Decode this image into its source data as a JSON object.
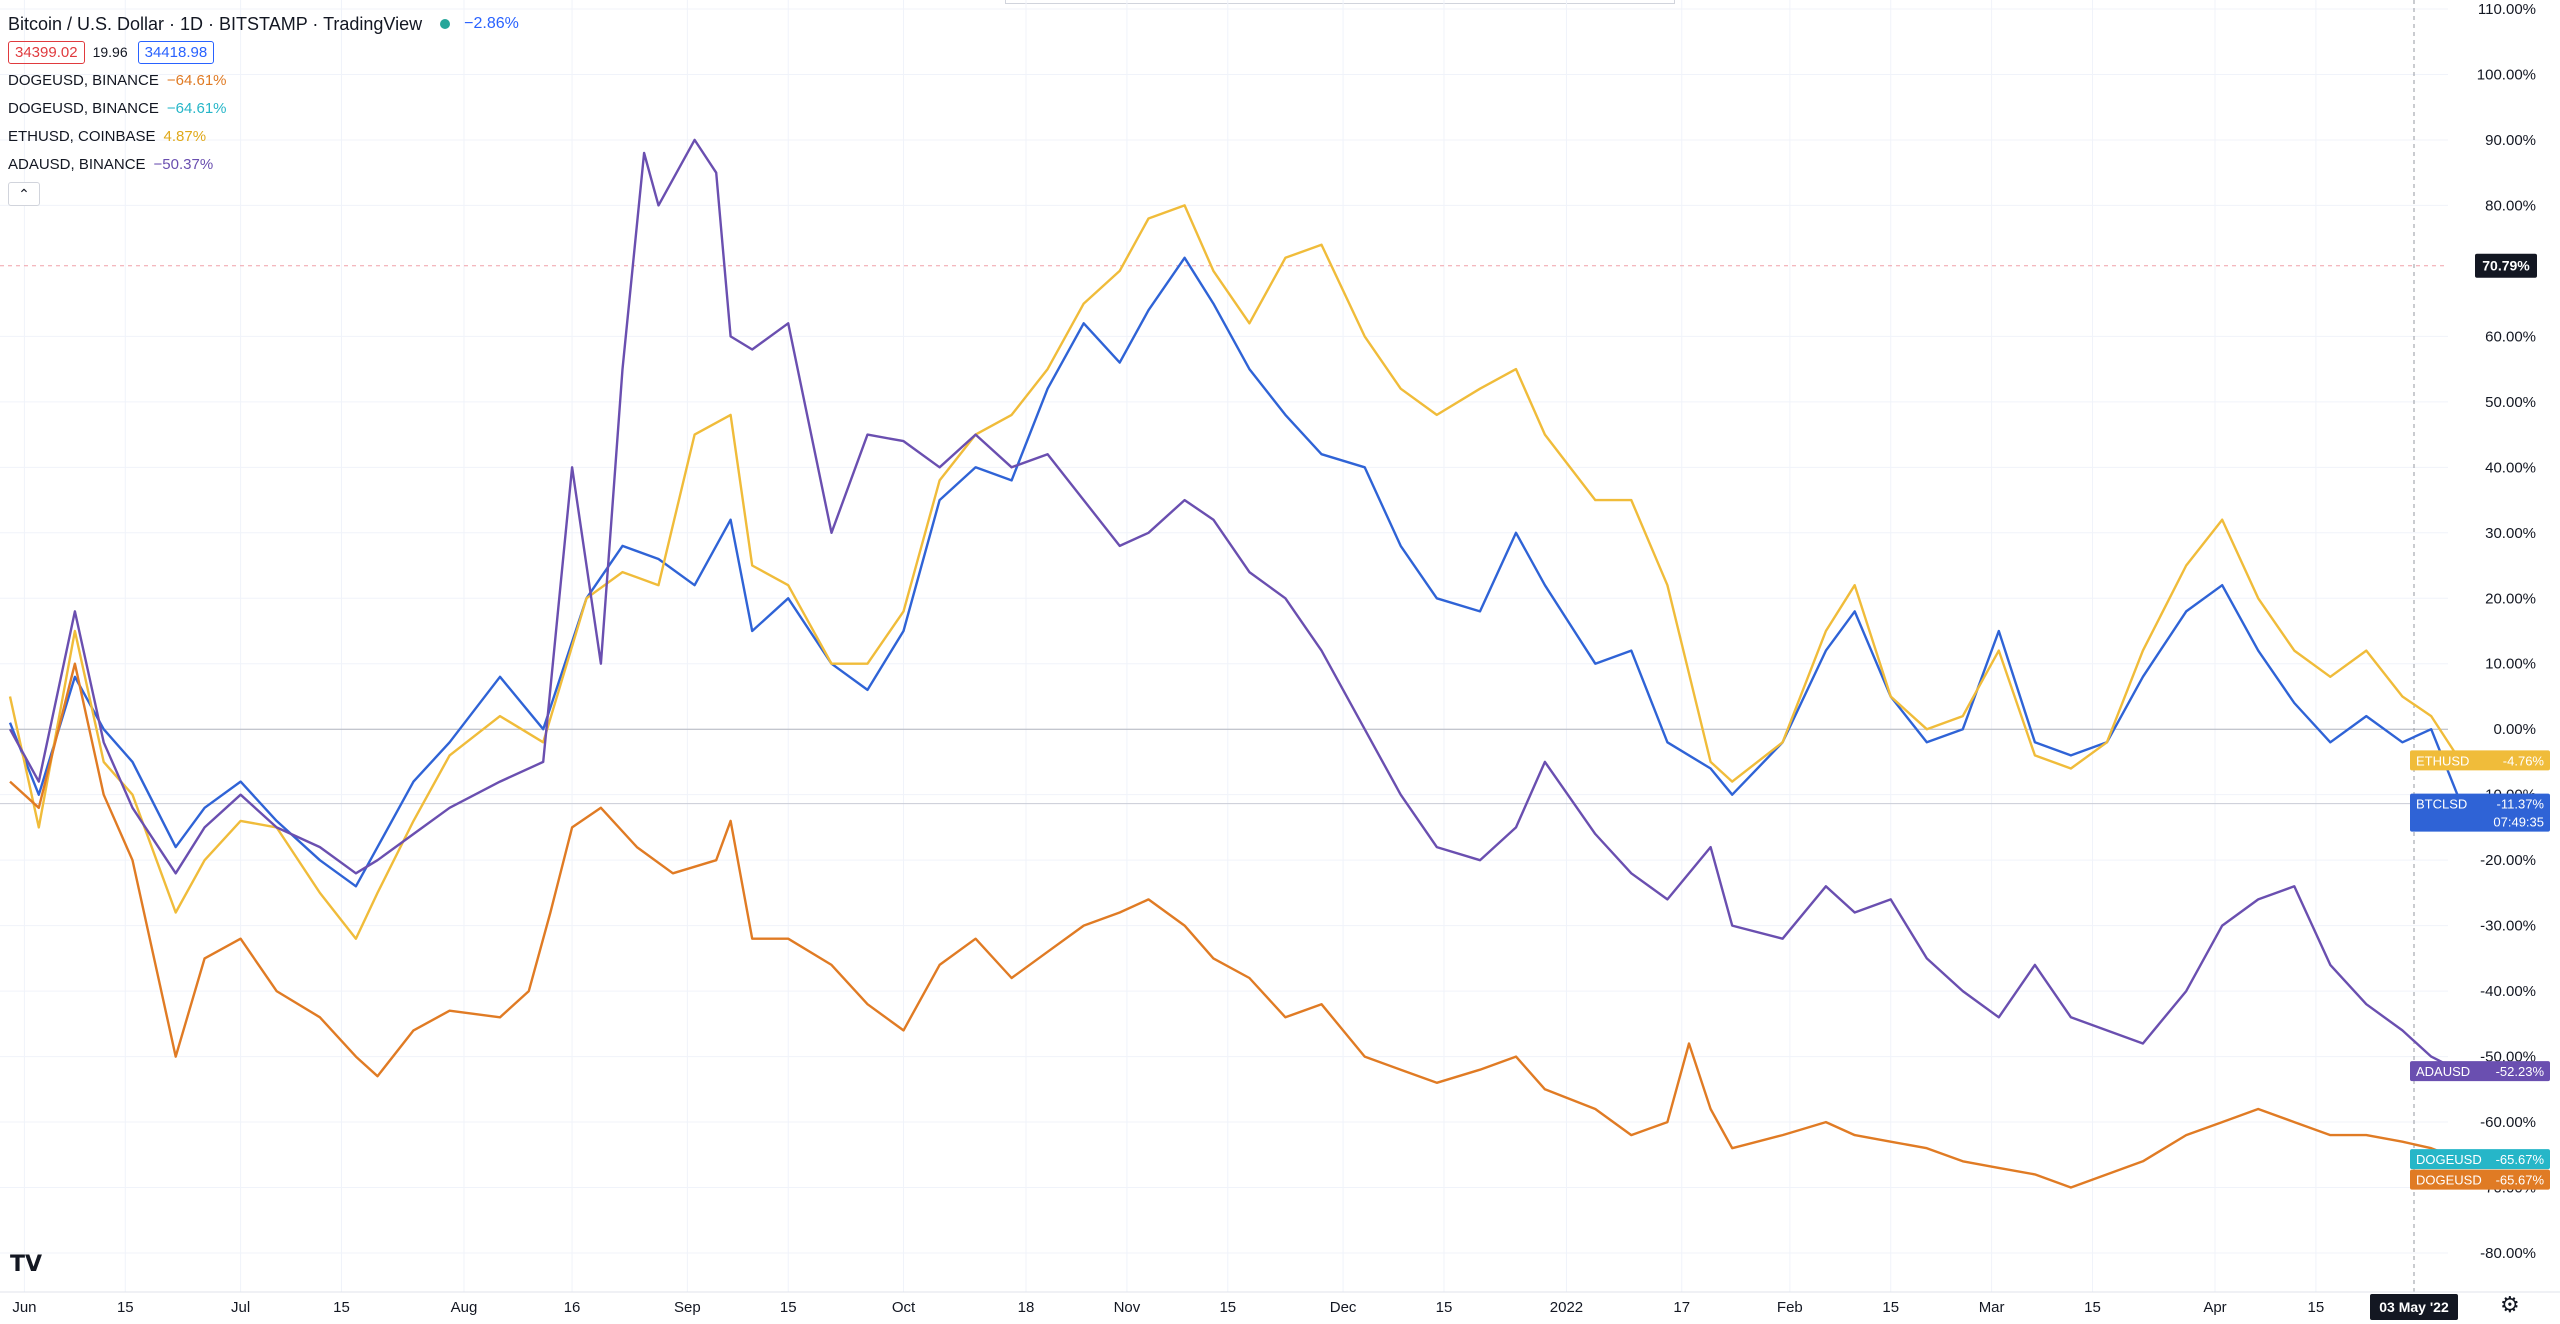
{
  "header": {
    "title": "Bitcoin / U.S. Dollar · 1D · BITSTAMP · TradingView",
    "change": "−2.86%",
    "bid": "34399.02",
    "spread": "19.96",
    "ask": "34418.98",
    "collapse_icon": "chevron-up-icon"
  },
  "legend_items": [
    {
      "symbol": "DOGEUSD, BINANCE",
      "value": "−64.61%",
      "color": "#e07b24"
    },
    {
      "symbol": "DOGEUSD, BINANCE",
      "value": "−64.61%",
      "color": "#26b6c8"
    },
    {
      "symbol": "ETHUSD, COINBASE",
      "value": "4.87%",
      "color": "#f0bc3a"
    },
    {
      "symbol": "ADAUSD, BINANCE",
      "value": "−50.37%",
      "color": "#6a4fb0"
    }
  ],
  "chart_data": {
    "type": "line",
    "x_range": [
      "2021-05-30",
      "2022-05-05"
    ],
    "y_range": [
      -82,
      110
    ],
    "y_ticks": [
      "110.00%",
      "100.00%",
      "90.00%",
      "80.00%",
      "60.00%",
      "50.00%",
      "40.00%",
      "30.00%",
      "20.00%",
      "10.00%",
      "0.00%",
      "-10.00%",
      "-20.00%",
      "-30.00%",
      "-40.00%",
      "-50.00%",
      "-60.00%",
      "-70.00%",
      "-80.00%"
    ],
    "x_ticks": [
      {
        "label": "Jun",
        "date": "2021-06-01"
      },
      {
        "label": "15",
        "date": "2021-06-15"
      },
      {
        "label": "Jul",
        "date": "2021-07-01"
      },
      {
        "label": "15",
        "date": "2021-07-15"
      },
      {
        "label": "Aug",
        "date": "2021-08-01"
      },
      {
        "label": "16",
        "date": "2021-08-16"
      },
      {
        "label": "Sep",
        "date": "2021-09-01"
      },
      {
        "label": "15",
        "date": "2021-09-15"
      },
      {
        "label": "Oct",
        "date": "2021-10-01"
      },
      {
        "label": "18",
        "date": "2021-10-18"
      },
      {
        "label": "Nov",
        "date": "2021-11-01"
      },
      {
        "label": "15",
        "date": "2021-11-15"
      },
      {
        "label": "Dec",
        "date": "2021-12-01"
      },
      {
        "label": "15",
        "date": "2021-12-15"
      },
      {
        "label": "2022",
        "date": "2022-01-01"
      },
      {
        "label": "17",
        "date": "2022-01-17"
      },
      {
        "label": "Feb",
        "date": "2022-02-01"
      },
      {
        "label": "15",
        "date": "2022-02-15"
      },
      {
        "label": "Mar",
        "date": "2022-03-01"
      },
      {
        "label": "15",
        "date": "2022-03-15"
      },
      {
        "label": "Apr",
        "date": "2022-04-01"
      },
      {
        "label": "15",
        "date": "2022-04-15"
      }
    ],
    "cursor_date_label": "03 May '22",
    "crosshair_value_label": "70.79%",
    "grid": true,
    "series": [
      {
        "name": "BTCUSD",
        "color": "#2f63d6",
        "x": [
          "2021-05-30",
          "2021-06-03",
          "2021-06-08",
          "2021-06-12",
          "2021-06-16",
          "2021-06-22",
          "2021-06-26",
          "2021-07-01",
          "2021-07-06",
          "2021-07-12",
          "2021-07-17",
          "2021-07-20",
          "2021-07-25",
          "2021-07-30",
          "2021-08-06",
          "2021-08-12",
          "2021-08-18",
          "2021-08-23",
          "2021-08-28",
          "2021-09-02",
          "2021-09-07",
          "2021-09-10",
          "2021-09-15",
          "2021-09-21",
          "2021-09-26",
          "2021-10-01",
          "2021-10-06",
          "2021-10-11",
          "2021-10-16",
          "2021-10-21",
          "2021-10-26",
          "2021-10-31",
          "2021-11-04",
          "2021-11-09",
          "2021-11-13",
          "2021-11-18",
          "2021-11-23",
          "2021-11-28",
          "2021-12-04",
          "2021-12-09",
          "2021-12-14",
          "2021-12-20",
          "2021-12-25",
          "2021-12-29",
          "2022-01-05",
          "2022-01-10",
          "2022-01-15",
          "2022-01-21",
          "2022-01-24",
          "2022-01-31",
          "2022-02-06",
          "2022-02-10",
          "2022-02-15",
          "2022-02-20",
          "2022-02-25",
          "2022-03-02",
          "2022-03-07",
          "2022-03-12",
          "2022-03-17",
          "2022-03-22",
          "2022-03-28",
          "2022-04-02",
          "2022-04-07",
          "2022-04-12",
          "2022-04-17",
          "2022-04-22",
          "2022-04-27",
          "2022-05-01",
          "2022-05-05"
        ],
        "values": [
          1,
          -10,
          8,
          0,
          -5,
          -18,
          -12,
          -8,
          -14,
          -20,
          -24,
          -18,
          -8,
          -2,
          8,
          0,
          20,
          28,
          26,
          22,
          32,
          15,
          20,
          10,
          6,
          15,
          35,
          40,
          38,
          52,
          62,
          56,
          64,
          72,
          65,
          55,
          48,
          42,
          40,
          28,
          20,
          18,
          30,
          22,
          10,
          12,
          -2,
          -6,
          -10,
          -2,
          12,
          18,
          5,
          -2,
          0,
          15,
          -2,
          -4,
          -2,
          8,
          18,
          22,
          12,
          4,
          -2,
          2,
          -2,
          0,
          -11
        ]
      },
      {
        "name": "ETHUSD",
        "color": "#f0bc3a",
        "x": [
          "2021-05-30",
          "2021-06-03",
          "2021-06-08",
          "2021-06-12",
          "2021-06-16",
          "2021-06-22",
          "2021-06-26",
          "2021-07-01",
          "2021-07-06",
          "2021-07-12",
          "2021-07-17",
          "2021-07-20",
          "2021-07-25",
          "2021-07-30",
          "2021-08-06",
          "2021-08-12",
          "2021-08-18",
          "2021-08-23",
          "2021-08-28",
          "2021-09-02",
          "2021-09-07",
          "2021-09-10",
          "2021-09-15",
          "2021-09-21",
          "2021-09-26",
          "2021-10-01",
          "2021-10-06",
          "2021-10-11",
          "2021-10-16",
          "2021-10-21",
          "2021-10-26",
          "2021-10-31",
          "2021-11-04",
          "2021-11-09",
          "2021-11-13",
          "2021-11-18",
          "2021-11-23",
          "2021-11-28",
          "2021-12-04",
          "2021-12-09",
          "2021-12-14",
          "2021-12-20",
          "2021-12-25",
          "2021-12-29",
          "2022-01-05",
          "2022-01-10",
          "2022-01-15",
          "2022-01-21",
          "2022-01-24",
          "2022-01-31",
          "2022-02-06",
          "2022-02-10",
          "2022-02-15",
          "2022-02-20",
          "2022-02-25",
          "2022-03-02",
          "2022-03-07",
          "2022-03-12",
          "2022-03-17",
          "2022-03-22",
          "2022-03-28",
          "2022-04-02",
          "2022-04-07",
          "2022-04-12",
          "2022-04-17",
          "2022-04-22",
          "2022-04-27",
          "2022-05-01",
          "2022-05-05"
        ],
        "values": [
          5,
          -15,
          15,
          -5,
          -10,
          -28,
          -20,
          -14,
          -15,
          -25,
          -32,
          -25,
          -14,
          -4,
          2,
          -2,
          20,
          24,
          22,
          45,
          48,
          25,
          22,
          10,
          10,
          18,
          38,
          45,
          48,
          55,
          65,
          70,
          78,
          80,
          70,
          62,
          72,
          74,
          60,
          52,
          48,
          52,
          55,
          45,
          35,
          35,
          22,
          -5,
          -8,
          -2,
          15,
          22,
          5,
          0,
          2,
          12,
          -4,
          -6,
          -2,
          12,
          25,
          32,
          20,
          12,
          8,
          12,
          5,
          2,
          -4.76
        ]
      },
      {
        "name": "ADAUSD",
        "color": "#6a4fb0",
        "x": [
          "2021-05-30",
          "2021-06-03",
          "2021-06-08",
          "2021-06-12",
          "2021-06-16",
          "2021-06-22",
          "2021-06-26",
          "2021-07-01",
          "2021-07-06",
          "2021-07-12",
          "2021-07-17",
          "2021-07-20",
          "2021-07-25",
          "2021-07-30",
          "2021-08-06",
          "2021-08-12",
          "2021-08-16",
          "2021-08-20",
          "2021-08-23",
          "2021-08-26",
          "2021-08-28",
          "2021-09-02",
          "2021-09-05",
          "2021-09-07",
          "2021-09-10",
          "2021-09-15",
          "2021-09-21",
          "2021-09-26",
          "2021-10-01",
          "2021-10-06",
          "2021-10-11",
          "2021-10-16",
          "2021-10-21",
          "2021-10-26",
          "2021-10-31",
          "2021-11-04",
          "2021-11-09",
          "2021-11-13",
          "2021-11-18",
          "2021-11-23",
          "2021-11-28",
          "2021-12-04",
          "2021-12-09",
          "2021-12-14",
          "2021-12-20",
          "2021-12-25",
          "2021-12-29",
          "2022-01-05",
          "2022-01-10",
          "2022-01-15",
          "2022-01-21",
          "2022-01-24",
          "2022-01-31",
          "2022-02-06",
          "2022-02-10",
          "2022-02-15",
          "2022-02-20",
          "2022-02-25",
          "2022-03-02",
          "2022-03-07",
          "2022-03-12",
          "2022-03-17",
          "2022-03-22",
          "2022-03-28",
          "2022-04-02",
          "2022-04-07",
          "2022-04-12",
          "2022-04-17",
          "2022-04-22",
          "2022-04-27",
          "2022-05-01",
          "2022-05-05"
        ],
        "values": [
          0,
          -8,
          18,
          -2,
          -12,
          -22,
          -15,
          -10,
          -15,
          -18,
          -22,
          -20,
          -16,
          -12,
          -8,
          -5,
          40,
          10,
          55,
          88,
          80,
          90,
          85,
          60,
          58,
          62,
          30,
          45,
          44,
          40,
          45,
          40,
          42,
          35,
          28,
          30,
          35,
          32,
          24,
          20,
          12,
          0,
          -10,
          -18,
          -20,
          -15,
          -5,
          -16,
          -22,
          -26,
          -18,
          -30,
          -32,
          -24,
          -28,
          -26,
          -35,
          -40,
          -44,
          -36,
          -44,
          -46,
          -48,
          -40,
          -30,
          -26,
          -24,
          -36,
          -42,
          -46,
          -50,
          -52.23
        ]
      },
      {
        "name": "DOGEUSD",
        "color": "#e07b24",
        "x": [
          "2021-05-30",
          "2021-06-03",
          "2021-06-08",
          "2021-06-12",
          "2021-06-16",
          "2021-06-22",
          "2021-06-26",
          "2021-07-01",
          "2021-07-06",
          "2021-07-12",
          "2021-07-17",
          "2021-07-20",
          "2021-07-25",
          "2021-07-30",
          "2021-08-06",
          "2021-08-10",
          "2021-08-13",
          "2021-08-16",
          "2021-08-20",
          "2021-08-25",
          "2021-08-30",
          "2021-09-05",
          "2021-09-07",
          "2021-09-10",
          "2021-09-15",
          "2021-09-21",
          "2021-09-26",
          "2021-10-01",
          "2021-10-06",
          "2021-10-11",
          "2021-10-16",
          "2021-10-21",
          "2021-10-26",
          "2021-10-31",
          "2021-11-04",
          "2021-11-09",
          "2021-11-13",
          "2021-11-18",
          "2021-11-23",
          "2021-11-28",
          "2021-12-04",
          "2021-12-09",
          "2021-12-14",
          "2021-12-20",
          "2021-12-25",
          "2021-12-29",
          "2022-01-05",
          "2022-01-10",
          "2022-01-15",
          "2022-01-18",
          "2022-01-21",
          "2022-01-24",
          "2022-01-31",
          "2022-02-06",
          "2022-02-10",
          "2022-02-15",
          "2022-02-20",
          "2022-02-25",
          "2022-03-02",
          "2022-03-07",
          "2022-03-12",
          "2022-03-17",
          "2022-03-22",
          "2022-03-28",
          "2022-04-02",
          "2022-04-07",
          "2022-04-12",
          "2022-04-17",
          "2022-04-22",
          "2022-04-27",
          "2022-05-01",
          "2022-05-05"
        ],
        "values": [
          -8,
          -12,
          10,
          -10,
          -20,
          -50,
          -35,
          -32,
          -40,
          -44,
          -50,
          -53,
          -46,
          -43,
          -44,
          -40,
          -28,
          -15,
          -12,
          -18,
          -22,
          -20,
          -14,
          -32,
          -32,
          -36,
          -42,
          -46,
          -36,
          -32,
          -38,
          -34,
          -30,
          -28,
          -26,
          -30,
          -35,
          -38,
          -44,
          -42,
          -50,
          -52,
          -54,
          -52,
          -50,
          -55,
          -58,
          -62,
          -60,
          -48,
          -58,
          -64,
          -62,
          -60,
          -62,
          -63,
          -64,
          -66,
          -67,
          -68,
          -70,
          -68,
          -66,
          -62,
          -60,
          -58,
          -60,
          -62,
          -62,
          -63,
          -64,
          -65.67
        ]
      }
    ],
    "price_tags": [
      {
        "name": "ETHUSD",
        "value": "-4.76%",
        "y": -4.76,
        "color": "#f0bc3a"
      },
      {
        "name": "BTCLSD",
        "value": "-11.37%",
        "y": -11.37,
        "color": "#2f63d6",
        "sub": "07:49:35"
      },
      {
        "name": "ADAUSD",
        "value": "-52.23%",
        "y": -52.23,
        "color": "#6a4fb0"
      },
      {
        "name": "DOGEUSD",
        "value": "-65.67%",
        "y": -65.67,
        "color": "#26b6c8"
      },
      {
        "name": "DOGEUSD",
        "value": "-65.67%",
        "y": -68.8,
        "color": "#e07b24"
      }
    ]
  },
  "footer": {
    "logo_text": "TV",
    "settings_icon": "gear-icon"
  }
}
